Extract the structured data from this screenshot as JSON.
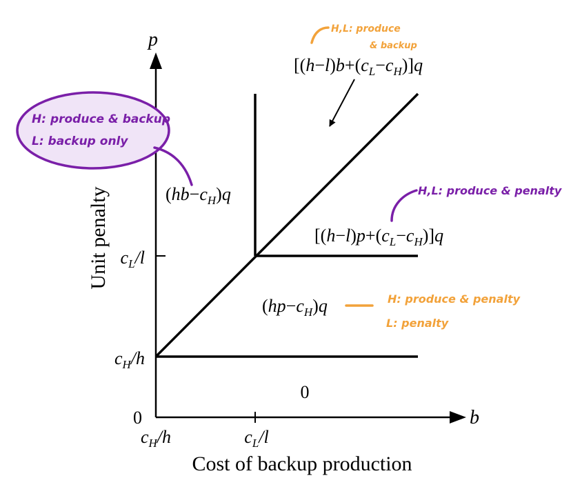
{
  "axes": {
    "y_var": "p",
    "x_var": "b",
    "y_label": "Unit penalty",
    "x_label": "Cost of backup production",
    "y_ticks": [
      "c_L/l",
      "c_H/h",
      "0"
    ],
    "x_ticks": [
      "c_H/h",
      "c_L/l"
    ]
  },
  "regions": {
    "top_left": {
      "expr": "(hb−c_H)q"
    },
    "top_right": {
      "expr": "[(h−l)b+(c_L−c_H)]q"
    },
    "middle_right": {
      "expr": "[(h−l)p+(c_L−c_H)]q"
    },
    "middle": {
      "expr": "(hp−c_H)q"
    },
    "bottom": {
      "expr": "0"
    }
  },
  "annotations": {
    "circled_note": [
      "H: produce & backup",
      "L: backup only"
    ],
    "top_note": [
      "H,L: produce",
      "& backup"
    ],
    "right_note": "H,L: produce & penalty",
    "middle_note": [
      "H: produce & penalty",
      "L: penalty"
    ]
  },
  "colors": {
    "ink": "#000000",
    "purple": "#7a1fa8",
    "purple_fill": "#f0e4f7",
    "orange": "#f2a23a"
  }
}
